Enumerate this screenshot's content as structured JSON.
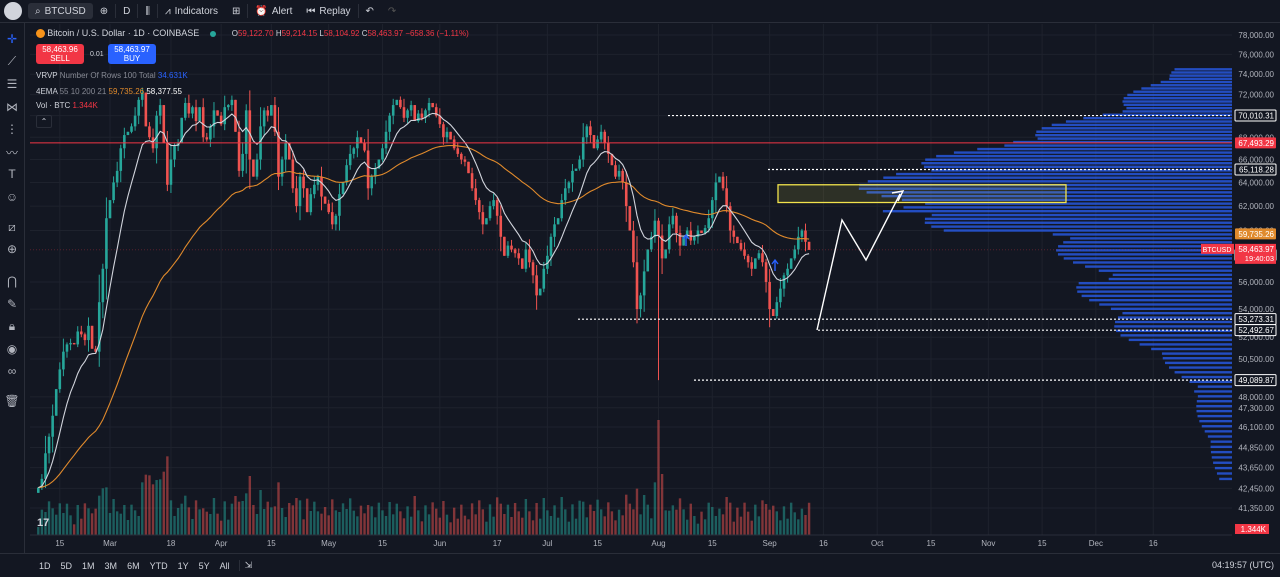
{
  "toolbar": {
    "symbol": "BTCUSD",
    "interval": "D",
    "indicators": "Indicators",
    "alert": "Alert",
    "replay": "Replay"
  },
  "header": {
    "title": "Bitcoin / U.S. Dollar · 1D · COINBASE",
    "o_label": "O",
    "o_value": "59,122.70",
    "h_label": "H",
    "h_value": "59,214.15",
    "l_label": "L",
    "l_value": "58,104.92",
    "c_label": "C",
    "c_value": "58,463.97",
    "change": "−658.36 (−1.11%)"
  },
  "trade": {
    "sell_price": "58,463.96",
    "sell_label": "SELL",
    "spread": "0.01",
    "buy_price": "58,463.97",
    "buy_label": "BUY"
  },
  "indicators_legend": {
    "vrvp_name": "VRVP",
    "vrvp_params": "Number Of Rows 100 Total",
    "vrvp_value": "34.631K",
    "ema_name": "4EMA",
    "ema_params": "55 10 200 21",
    "ema_value1": "59,735.26",
    "ema_value2": "58,377.55",
    "vol_name": "Vol · BTC",
    "vol_value": "1.344K"
  },
  "price_badges": {
    "level_70010": "70,010.31",
    "level_67493": "67,493.29",
    "level_65118": "65,118.28",
    "ema_badge": "59,735.26",
    "current_symbol": "BTCUSD",
    "current_price": "58,463.97",
    "countdown": "19:40:03",
    "ema2_badge": "58,377.55",
    "level_53273": "53,273.31",
    "level_52492": "52,492.67",
    "level_49089": "49,089.87",
    "volume_badge": "1.344K"
  },
  "ranges": [
    "1D",
    "5D",
    "1M",
    "3M",
    "6M",
    "YTD",
    "1Y",
    "5Y",
    "All"
  ],
  "clock": "04:19:57 (UTC)",
  "colors": {
    "up": "#26a69a",
    "down": "#ef5350",
    "ema_white": "#d1d4dc",
    "ema_orange": "#e08a2c",
    "profile": "#2962ff",
    "resistance": "#f23645",
    "zone": "#f2e34c"
  },
  "chart_data": {
    "type": "candlestick",
    "title": "Bitcoin / U.S. Dollar · 1D · COINBASE",
    "y_axis_ticks": [
      "78,000.00",
      "76,000.00",
      "74,000.00",
      "72,000.00",
      "70,000.00",
      "68,000.00",
      "66,000.00",
      "64,000.00",
      "62,000.00",
      "60,000.00",
      "56,000.00",
      "54,000.00",
      "52,000.00",
      "50,500.00",
      "48,000.00",
      "47,300.00",
      "46,100.00",
      "44,850.00",
      "43,650.00",
      "42,450.00",
      "41,350.00"
    ],
    "y_tick_values": [
      78000,
      76000,
      74000,
      72000,
      70000,
      68000,
      66000,
      64000,
      62000,
      60000,
      56000,
      54000,
      52000,
      50500,
      48000,
      47300,
      46100,
      44850,
      43650,
      42450,
      41350
    ],
    "y_scale": "log",
    "x_axis_ticks": [
      "15",
      "Mar",
      "18",
      "Apr",
      "15",
      "May",
      "15",
      "Jun",
      "17",
      "Jul",
      "15",
      "Aug",
      "15",
      "Sep",
      "16",
      "Oct",
      "15",
      "Nov",
      "15",
      "Dec",
      "16"
    ],
    "x_tick_days": [
      -14,
      0,
      17,
      31,
      45,
      61,
      76,
      92,
      108,
      122,
      136,
      153,
      168,
      184,
      199,
      214,
      229,
      245,
      260,
      275,
      291
    ],
    "date_anchor": "Mar 1",
    "closes": [
      42500,
      43000,
      44500,
      45500,
      46800,
      48500,
      49800,
      51000,
      51500,
      51600,
      51500,
      52400,
      52200,
      51800,
      52800,
      51200,
      51000,
      54500,
      57000,
      61000,
      62500,
      64000,
      65000,
      67000,
      68200,
      68500,
      69000,
      70000,
      71500,
      72200,
      69000,
      68000,
      67000,
      70000,
      71000,
      67500,
      63800,
      66000,
      67200,
      67500,
      69800,
      71200,
      70200,
      70800,
      69500,
      70800,
      68000,
      67800,
      69000,
      70500,
      70000,
      69200,
      70800,
      71000,
      71500,
      68500,
      65000,
      66500,
      70500,
      66000,
      64500,
      66000,
      69000,
      70500,
      70000,
      71000,
      68500,
      64500,
      66000,
      67500,
      66000,
      63500,
      62000,
      64500,
      63500,
      61500,
      63000,
      63800,
      64500,
      62800,
      62200,
      61500,
      60500,
      61200,
      63000,
      64000,
      65500,
      66500,
      67000,
      68000,
      67500,
      66800,
      63500,
      64500,
      65200,
      66000,
      67000,
      68500,
      70000,
      71000,
      71500,
      70800,
      69800,
      70500,
      71000,
      69500,
      70200,
      69800,
      70500,
      71200,
      70800,
      70000,
      69200,
      68000,
      68500,
      67800,
      67000,
      66500,
      66000,
      65800,
      64800,
      63500,
      62500,
      61500,
      60500,
      61000,
      62000,
      62500,
      61200,
      59500,
      58000,
      58800,
      58500,
      58200,
      57800,
      57000,
      58500,
      57500,
      56500,
      55000,
      55500,
      57000,
      58000,
      59500,
      60500,
      61000,
      62500,
      63500,
      64000,
      65000,
      65200,
      66000,
      68000,
      69000,
      68200,
      67000,
      67800,
      68500,
      67500,
      66500,
      65500,
      64500,
      65000,
      64000,
      62000,
      60000,
      57500,
      54000,
      55000,
      56800,
      58500,
      59500,
      60800,
      59600,
      57800,
      58500,
      60500,
      61200,
      59800,
      58800,
      59500,
      60000,
      59200,
      59500,
      60000,
      59800,
      60200,
      61000,
      62500,
      64000,
      64500,
      63500,
      62000,
      60000,
      59500,
      59000,
      58500,
      58000,
      57500,
      57000,
      57800,
      58200,
      57500,
      56000,
      54000,
      53500,
      54500,
      55500,
      56500,
      57000,
      57800,
      58500,
      59500,
      60000,
      59100,
      58463
    ]
  }
}
